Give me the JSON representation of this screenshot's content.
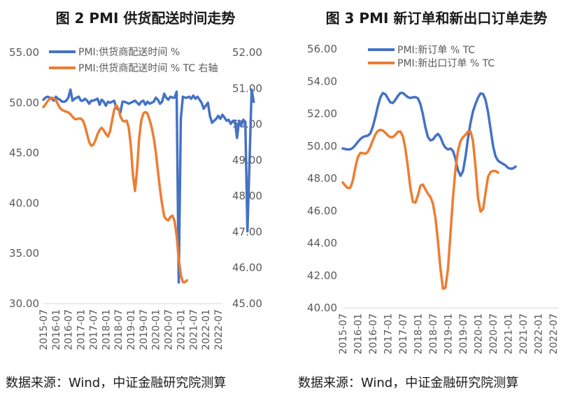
{
  "charts": [
    {
      "title": "图 2 PMI 供货配送时间走势",
      "source": "数据来源：Wind，中证金融研究院测算"
    },
    {
      "title": "图 3 PMI 新订单和新出口订单走势",
      "source": "数据来源：Wind，中证金融研究院测算"
    }
  ],
  "colors": {
    "blue": "#4472C4",
    "orange": "#ED7D31",
    "tick": "#595959"
  },
  "chart_data": [
    {
      "type": "line",
      "x_tick_labels": [
        "2015-07",
        "2016-01",
        "2016-07",
        "2017-01",
        "2017-07",
        "2018-01",
        "2018-07",
        "2019-01",
        "2019-07",
        "2020-01",
        "2020-07",
        "2021-01",
        "2021-07",
        "2022-01",
        "2022-07"
      ],
      "x_range": [
        "2015-07",
        "2022-09"
      ],
      "y_left": {
        "ticks": [
          "30.00",
          "35.00",
          "40.00",
          "45.00",
          "50.00",
          "55.00"
        ],
        "min": 30,
        "max": 55
      },
      "y_right": {
        "ticks": [
          "45.00",
          "46.00",
          "47.00",
          "48.00",
          "49.00",
          "50.00",
          "51.00",
          "52.00"
        ],
        "min": 45,
        "max": 52
      },
      "legend": "top-left",
      "grid": false,
      "series": [
        {
          "name": "PMI:供货商配送时间 %",
          "axis": "left",
          "color": "#4472C4",
          "start": "2015-07",
          "values": [
            50.3,
            50.5,
            50.6,
            50.5,
            50.4,
            50.2,
            50.6,
            50.4,
            50.3,
            50.1,
            50.1,
            50.2,
            50.5,
            51.3,
            50.2,
            50.4,
            50.5,
            50.6,
            50.2,
            50.2,
            50.4,
            50.2,
            49.9,
            50.2,
            50.2,
            50.3,
            50.4,
            49.8,
            50.3,
            50.1,
            49.7,
            50.1,
            50.0,
            50.1,
            50.2,
            49.5,
            49.3,
            49.0,
            50.1,
            50.1,
            50.0,
            49.9,
            50.0,
            50.1,
            50.2,
            50.0,
            49.8,
            50.1,
            50.2,
            49.8,
            50.1,
            49.9,
            50.0,
            50.1,
            50.5,
            50.3,
            49.9,
            50.1,
            50.9,
            50.5,
            50.3,
            50.6,
            50.5,
            50.5,
            51.1,
            32.1,
            48.4,
            50.6,
            50.5,
            50.5,
            50.6,
            50.4,
            50.7,
            50.4,
            50.6,
            50.3,
            50.0,
            49.4,
            49.7,
            50.0,
            48.7,
            48.0,
            48.2,
            48.4,
            48.7,
            48.4,
            48.8,
            48.5,
            48.2,
            48.3,
            47.9,
            48.2,
            48.2,
            46.5,
            48.2,
            47.7,
            48.3,
            48.1,
            37.2,
            44.1,
            51.3,
            50.1
          ]
        },
        {
          "name": "PMI:供货商配送时间 % TC 右轴",
          "axis": "right",
          "color": "#ED7D31",
          "start": "2015-07",
          "values": [
            50.48,
            50.55,
            50.64,
            50.7,
            50.74,
            50.72,
            50.67,
            50.56,
            50.45,
            50.4,
            50.37,
            50.35,
            50.33,
            50.28,
            50.21,
            50.15,
            50.14,
            50.16,
            50.16,
            50.1,
            49.95,
            49.72,
            49.5,
            49.4,
            49.43,
            49.55,
            49.72,
            49.84,
            49.9,
            49.83,
            49.73,
            49.66,
            49.8,
            50.1,
            50.4,
            50.53,
            50.44,
            50.22,
            50.1,
            50.08,
            50.1,
            49.91,
            49.4,
            48.6,
            48.14,
            48.75,
            49.6,
            50.1,
            50.3,
            50.34,
            50.3,
            50.13,
            49.91,
            49.62,
            49.23,
            48.7,
            48.2,
            47.77,
            47.44,
            47.35,
            47.32,
            47.42,
            47.45,
            47.3,
            46.9,
            46.25,
            45.8,
            45.6,
            45.6,
            45.65
          ]
        }
      ]
    },
    {
      "type": "line",
      "x_tick_labels": [
        "2015-07",
        "2016-01",
        "2016-07",
        "2017-01",
        "2017-07",
        "2018-01",
        "2018-07",
        "2019-01",
        "2019-07",
        "2020-01",
        "2020-07",
        "2021-01",
        "2021-07",
        "2022-01",
        "2022-07"
      ],
      "x_range": [
        "2015-07",
        "2022-09"
      ],
      "y_left": {
        "ticks": [
          "40.00",
          "42.00",
          "44.00",
          "46.00",
          "48.00",
          "50.00",
          "52.00",
          "54.00",
          "56.00"
        ],
        "min": 40,
        "max": 56
      },
      "legend": "top-left",
      "grid": false,
      "series": [
        {
          "name": "PMI:新订单 % TC",
          "axis": "left",
          "color": "#4472C4",
          "start": "2015-07",
          "values": [
            49.85,
            49.81,
            49.79,
            49.8,
            49.88,
            50.05,
            50.25,
            50.43,
            50.55,
            50.61,
            50.64,
            50.78,
            51.2,
            51.8,
            52.45,
            53.0,
            53.28,
            53.2,
            52.95,
            52.7,
            52.66,
            52.85,
            53.1,
            53.28,
            53.28,
            53.15,
            53.02,
            52.97,
            53.01,
            53.03,
            52.95,
            52.6,
            51.95,
            51.15,
            50.55,
            50.35,
            50.4,
            50.62,
            50.75,
            50.55,
            50.15,
            49.9,
            49.79,
            49.85,
            49.7,
            49.2,
            48.5,
            48.16,
            48.45,
            49.35,
            50.5,
            51.45,
            52.15,
            52.6,
            53.0,
            53.25,
            53.22,
            52.85,
            52.1,
            51.05,
            50.0,
            49.35,
            49.1,
            48.98,
            48.9,
            48.8,
            48.65,
            48.6,
            48.62,
            48.73
          ]
        },
        {
          "name": "PMI:新出口订单 % TC",
          "axis": "left",
          "color": "#ED7D31",
          "start": "2015-07",
          "values": [
            47.75,
            47.55,
            47.4,
            47.42,
            47.85,
            48.65,
            49.3,
            49.58,
            49.56,
            49.52,
            49.64,
            49.95,
            50.35,
            50.72,
            50.93,
            51.0,
            50.96,
            50.82,
            50.65,
            50.55,
            50.55,
            50.7,
            50.88,
            50.9,
            50.6,
            49.85,
            48.7,
            47.4,
            46.55,
            46.5,
            46.95,
            47.55,
            47.62,
            47.32,
            47.05,
            46.85,
            46.45,
            45.55,
            44.1,
            42.4,
            41.18,
            41.25,
            42.4,
            44.6,
            46.85,
            48.6,
            49.7,
            50.3,
            50.55,
            50.7,
            50.9,
            50.9,
            50.3,
            48.7,
            46.8,
            45.95,
            46.1,
            47.1,
            48.1,
            48.4,
            48.46,
            48.46,
            48.36
          ]
        }
      ]
    }
  ]
}
